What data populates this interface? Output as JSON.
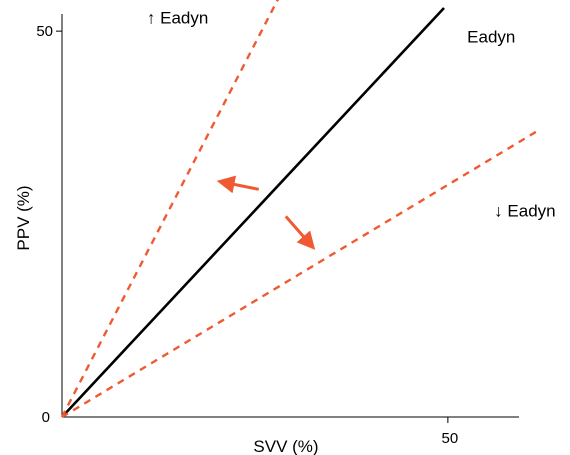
{
  "chart_data": {
    "type": "line",
    "xlabel": "SVV (%)",
    "ylabel": "PPV (%)",
    "xlim": [
      0,
      59
    ],
    "ylim": [
      0,
      60
    ],
    "x_ticks": [
      0,
      50
    ],
    "y_ticks": [
      0,
      50
    ],
    "grid": false,
    "series": [
      {
        "key": "ref",
        "style": "solid",
        "color": "#000000",
        "x": [
          0,
          49.5
        ],
        "y": [
          0,
          53
        ]
      },
      {
        "key": "up",
        "style": "dashed",
        "color": "#f05a32",
        "x": [
          0,
          30.5
        ],
        "y": [
          0,
          59
        ]
      },
      {
        "key": "down",
        "style": "dashed",
        "color": "#f05a32",
        "x": [
          0,
          61.5
        ],
        "y": [
          0,
          37
        ]
      }
    ],
    "arrows": [
      {
        "direction": "toward-upper-line",
        "from": [
          25.5,
          29.5
        ],
        "to": [
          20.5,
          30.5
        ],
        "color": "#f05a32"
      },
      {
        "direction": "toward-lower-line",
        "from": [
          29,
          26
        ],
        "to": [
          32.5,
          22
        ],
        "color": "#f05a32"
      }
    ],
    "annotations": [
      {
        "key": "ann-up",
        "text": "↑ Eadyn",
        "x": 11,
        "y": 51
      },
      {
        "key": "ann-ref",
        "text": "Eadyn",
        "x": 52.5,
        "y": 48.5
      },
      {
        "key": "ann-down",
        "text": "↓ Eadyn",
        "x": 56,
        "y": 26
      }
    ]
  }
}
